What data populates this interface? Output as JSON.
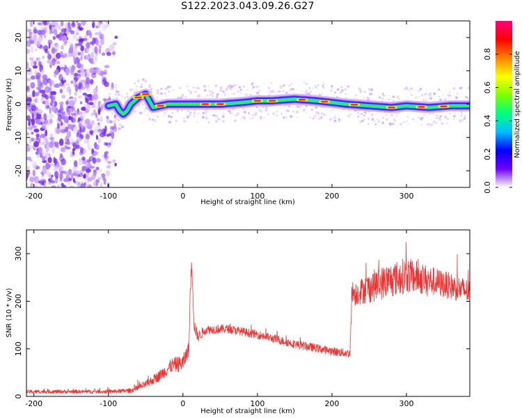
{
  "title": "S122.2023.043.09.26.G27",
  "chart_data": [
    {
      "type": "heatmap",
      "xlabel": "Height of straight line (km)",
      "ylabel": "Frequency (Hz)",
      "xlim": [
        -210,
        385
      ],
      "ylim": [
        -25,
        25
      ],
      "xticks": [
        -200,
        -100,
        0,
        100,
        200,
        300
      ],
      "yticks": [
        -20,
        -10,
        0,
        10,
        20
      ],
      "colorbar": {
        "label": "Normalized spectral amplitude",
        "ticks": [
          0.0,
          0.2,
          0.4,
          0.6,
          0.8
        ],
        "range": [
          0,
          1
        ],
        "colormap": [
          "#ffffff",
          "#6f00ff",
          "#0000ff",
          "#00bfff",
          "#00ff80",
          "#80ff00",
          "#ffff00",
          "#ff8000",
          "#ff0000",
          "#ff0080"
        ]
      },
      "noise_region_x": [
        -210,
        -100
      ],
      "ridge": {
        "x": [
          -100,
          -90,
          -85,
          -80,
          -75,
          -70,
          -60,
          -50,
          -45,
          -40,
          -30,
          -20,
          0,
          20,
          50,
          80,
          100,
          120,
          150,
          180,
          200,
          220,
          250,
          280,
          300,
          330,
          360,
          385
        ],
        "y": [
          -0.5,
          0,
          -2,
          -3,
          -2,
          0,
          2,
          3,
          1,
          -1,
          -0.5,
          0,
          0,
          0,
          0,
          0.5,
          1,
          1,
          1.5,
          1,
          0.5,
          0,
          -0.5,
          -1,
          -0.5,
          -1,
          -0.5,
          -0.5
        ],
        "peak_x": [
          -60,
          -50,
          -30,
          30,
          50,
          100,
          120,
          160,
          190,
          230,
          280,
          320,
          350
        ]
      }
    },
    {
      "type": "line",
      "xlabel": "Height of straight line (km)",
      "ylabel": "SNR (10 * v/v)",
      "xlim": [
        -210,
        385
      ],
      "ylim": [
        0,
        350
      ],
      "xticks": [
        -200,
        -100,
        0,
        100,
        200,
        300
      ],
      "yticks": [
        0,
        100,
        200,
        300
      ],
      "color": "#ee3333",
      "envelope": {
        "x": [
          -210,
          -100,
          -70,
          -50,
          -30,
          -15,
          0,
          8,
          10,
          12,
          15,
          20,
          30,
          60,
          100,
          150,
          200,
          224,
          227,
          230,
          260,
          300,
          340,
          385
        ],
        "y": [
          10,
          10,
          12,
          25,
          45,
          65,
          70,
          100,
          230,
          280,
          150,
          125,
          140,
          142,
          130,
          110,
          95,
          90,
          225,
          215,
          235,
          255,
          240,
          220
        ],
        "noise_amplitude": [
          4,
          4,
          5,
          8,
          12,
          15,
          18,
          15,
          15,
          15,
          15,
          12,
          10,
          9,
          9,
          9,
          9,
          9,
          25,
          25,
          35,
          38,
          30,
          25
        ]
      }
    }
  ]
}
